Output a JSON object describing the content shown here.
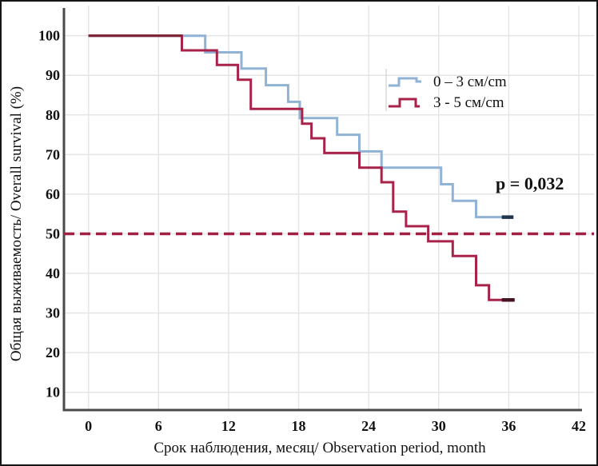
{
  "chart_data": {
    "type": "line",
    "subtype": "kaplan-meier-step-survival",
    "title": "",
    "xlabel": "Срок наблюдения, месяц/ Observation period, month",
    "ylabel": "Общая выживаемость/ Overall survival (%)",
    "x_ticks": [
      0,
      6,
      12,
      18,
      24,
      30,
      36,
      42
    ],
    "y_ticks": [
      10,
      20,
      30,
      40,
      50,
      60,
      70,
      80,
      90,
      100
    ],
    "xlim": [
      -2.1,
      43.3
    ],
    "ylim": [
      5.5,
      107.6
    ],
    "grid": true,
    "legend_position": "upper-right-inside",
    "annotation": {
      "text": "p = 0,032",
      "x": 37.8,
      "y": 62.8
    },
    "reference_line": {
      "y": 50,
      "style": "dashed",
      "color": "#9e2043"
    },
    "series": [
      {
        "name": "0 – 3 см/cm",
        "color": "#8fb2d5",
        "censor_color": "#23344d",
        "points": [
          [
            0,
            100
          ],
          [
            10,
            95.8
          ],
          [
            13.1,
            91.7
          ],
          [
            15.2,
            87.5
          ],
          [
            17.1,
            83.3
          ],
          [
            18.1,
            79.2
          ],
          [
            21.3,
            75.0
          ],
          [
            23.2,
            70.8
          ],
          [
            25.1,
            66.7
          ],
          [
            30.2,
            62.5
          ],
          [
            31.2,
            58.3
          ],
          [
            33.2,
            54.2
          ]
        ],
        "end_x": 36.4,
        "censor_tick_x": 35.4
      },
      {
        "name": "3 - 5 см/cm",
        "color": "#a8234a",
        "censor_color": "#471423",
        "points": [
          [
            0,
            100
          ],
          [
            8,
            96.3
          ],
          [
            11,
            92.6
          ],
          [
            12.8,
            88.9
          ],
          [
            13.9,
            81.5
          ],
          [
            18.3,
            77.8
          ],
          [
            19.1,
            74.1
          ],
          [
            20.2,
            70.4
          ],
          [
            23.2,
            66.7
          ],
          [
            25.1,
            63.0
          ],
          [
            26.1,
            55.6
          ],
          [
            27.2,
            51.9
          ],
          [
            29.1,
            48.1
          ],
          [
            31.2,
            44.4
          ],
          [
            33.2,
            37.0
          ],
          [
            34.3,
            33.3
          ]
        ],
        "end_x": 36.5,
        "censor_tick_x": 35.4
      }
    ],
    "overlap_color": "#7d2336",
    "colors": {
      "grid": "#e5e5e7",
      "axis": "#4a4a4a",
      "text": "#111111",
      "background": "#ffffff",
      "legend_box_edge": "#d9d9d9"
    }
  }
}
